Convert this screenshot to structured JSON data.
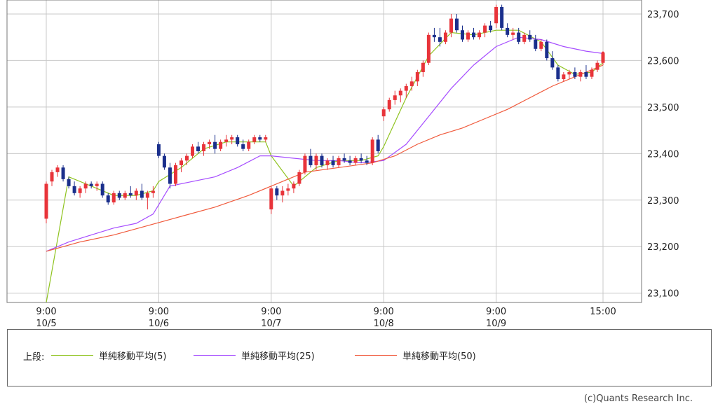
{
  "chart_data": {
    "type": "candlestick",
    "ylim": [
      23080,
      23730
    ],
    "y_ticks": [
      23100,
      23200,
      23300,
      23400,
      23500,
      23600,
      23700
    ],
    "y_tick_labels": [
      "23,100",
      "23,200",
      "23,300",
      "23,400",
      "23,500",
      "23,600",
      "23,700"
    ],
    "x_ticks": [
      {
        "i": 0,
        "line1": "9:00",
        "line2": "10/5"
      },
      {
        "i": 20,
        "line1": "9:00",
        "line2": "10/6"
      },
      {
        "i": 40,
        "line1": "9:00",
        "line2": "10/7"
      },
      {
        "i": 60,
        "line1": "9:00",
        "line2": "10/8"
      },
      {
        "i": 80,
        "line1": "9:00",
        "line2": "10/9"
      },
      {
        "i": 99,
        "line1": "15:00",
        "line2": ""
      }
    ],
    "n_bars": 100,
    "candles": [
      [
        0,
        23260,
        23340,
        23250,
        23335
      ],
      [
        1,
        23340,
        23365,
        23330,
        23360
      ],
      [
        2,
        23360,
        23375,
        23350,
        23370
      ],
      [
        3,
        23370,
        23375,
        23340,
        23345
      ],
      [
        4,
        23345,
        23350,
        23325,
        23330
      ],
      [
        5,
        23330,
        23340,
        23310,
        23315
      ],
      [
        6,
        23315,
        23330,
        23305,
        23325
      ],
      [
        7,
        23325,
        23340,
        23315,
        23335
      ],
      [
        8,
        23335,
        23340,
        23325,
        23330
      ],
      [
        9,
        23330,
        23340,
        23320,
        23335
      ],
      [
        10,
        23335,
        23340,
        23305,
        23310
      ],
      [
        11,
        23310,
        23315,
        23290,
        23295
      ],
      [
        12,
        23295,
        23320,
        23290,
        23315
      ],
      [
        13,
        23315,
        23320,
        23300,
        23305
      ],
      [
        14,
        23305,
        23320,
        23300,
        23315
      ],
      [
        15,
        23315,
        23330,
        23305,
        23310
      ],
      [
        16,
        23310,
        23325,
        23300,
        23320
      ],
      [
        17,
        23320,
        23335,
        23300,
        23305
      ],
      [
        18,
        23305,
        23320,
        23280,
        23315
      ],
      [
        19,
        23315,
        23330,
        23305,
        23320
      ],
      [
        20,
        23420,
        23425,
        23390,
        23395
      ],
      [
        21,
        23395,
        23400,
        23365,
        23370
      ],
      [
        22,
        23370,
        23380,
        23325,
        23335
      ],
      [
        23,
        23335,
        23380,
        23330,
        23375
      ],
      [
        24,
        23375,
        23390,
        23360,
        23385
      ],
      [
        25,
        23385,
        23400,
        23375,
        23395
      ],
      [
        26,
        23395,
        23420,
        23390,
        23415
      ],
      [
        27,
        23415,
        23425,
        23400,
        23405
      ],
      [
        28,
        23405,
        23425,
        23395,
        23420
      ],
      [
        29,
        23420,
        23430,
        23410,
        23425
      ],
      [
        30,
        23425,
        23440,
        23400,
        23410
      ],
      [
        31,
        23410,
        23430,
        23405,
        23425
      ],
      [
        32,
        23425,
        23440,
        23415,
        23430
      ],
      [
        33,
        23430,
        23440,
        23420,
        23435
      ],
      [
        34,
        23435,
        23440,
        23415,
        23420
      ],
      [
        35,
        23420,
        23430,
        23405,
        23410
      ],
      [
        36,
        23410,
        23430,
        23405,
        23425
      ],
      [
        37,
        23425,
        23440,
        23420,
        23435
      ],
      [
        38,
        23435,
        23440,
        23425,
        23430
      ],
      [
        39,
        23430,
        23440,
        23425,
        23435
      ],
      [
        40,
        23280,
        23330,
        23270,
        23325
      ],
      [
        41,
        23325,
        23330,
        23300,
        23310
      ],
      [
        42,
        23310,
        23330,
        23295,
        23320
      ],
      [
        43,
        23320,
        23335,
        23310,
        23325
      ],
      [
        44,
        23325,
        23340,
        23315,
        23335
      ],
      [
        45,
        23335,
        23365,
        23330,
        23360
      ],
      [
        46,
        23360,
        23400,
        23355,
        23395
      ],
      [
        47,
        23395,
        23410,
        23370,
        23375
      ],
      [
        48,
        23375,
        23400,
        23365,
        23395
      ],
      [
        49,
        23395,
        23400,
        23370,
        23375
      ],
      [
        50,
        23375,
        23390,
        23365,
        23385
      ],
      [
        51,
        23385,
        23395,
        23370,
        23375
      ],
      [
        52,
        23375,
        23395,
        23370,
        23390
      ],
      [
        53,
        23390,
        23400,
        23380,
        23385
      ],
      [
        54,
        23385,
        23395,
        23375,
        23380
      ],
      [
        55,
        23380,
        23395,
        23375,
        23390
      ],
      [
        56,
        23390,
        23400,
        23380,
        23385
      ],
      [
        57,
        23385,
        23395,
        23375,
        23380
      ],
      [
        58,
        23380,
        23435,
        23375,
        23430
      ],
      [
        59,
        23430,
        23440,
        23400,
        23405
      ],
      [
        60,
        23480,
        23500,
        23470,
        23495
      ],
      [
        61,
        23495,
        23520,
        23490,
        23515
      ],
      [
        62,
        23515,
        23535,
        23505,
        23525
      ],
      [
        63,
        23525,
        23540,
        23510,
        23535
      ],
      [
        64,
        23535,
        23550,
        23520,
        23545
      ],
      [
        65,
        23545,
        23565,
        23535,
        23555
      ],
      [
        66,
        23555,
        23580,
        23545,
        23575
      ],
      [
        67,
        23575,
        23600,
        23565,
        23595
      ],
      [
        68,
        23595,
        23660,
        23590,
        23655
      ],
      [
        69,
        23655,
        23670,
        23640,
        23650
      ],
      [
        70,
        23650,
        23670,
        23630,
        23640
      ],
      [
        71,
        23640,
        23665,
        23635,
        23660
      ],
      [
        72,
        23660,
        23700,
        23650,
        23690
      ],
      [
        73,
        23690,
        23700,
        23660,
        23665
      ],
      [
        74,
        23665,
        23675,
        23640,
        23645
      ],
      [
        75,
        23645,
        23665,
        23640,
        23660
      ],
      [
        76,
        23660,
        23670,
        23645,
        23650
      ],
      [
        77,
        23650,
        23665,
        23645,
        23660
      ],
      [
        78,
        23660,
        23680,
        23650,
        23675
      ],
      [
        79,
        23675,
        23685,
        23660,
        23665
      ],
      [
        80,
        23680,
        23720,
        23670,
        23715
      ],
      [
        81,
        23715,
        23720,
        23665,
        23670
      ],
      [
        82,
        23670,
        23680,
        23650,
        23655
      ],
      [
        83,
        23655,
        23670,
        23645,
        23660
      ],
      [
        84,
        23660,
        23670,
        23635,
        23640
      ],
      [
        85,
        23640,
        23660,
        23635,
        23655
      ],
      [
        86,
        23655,
        23665,
        23640,
        23645
      ],
      [
        87,
        23645,
        23655,
        23620,
        23625
      ],
      [
        88,
        23625,
        23645,
        23620,
        23640
      ],
      [
        89,
        23640,
        23645,
        23600,
        23605
      ],
      [
        90,
        23605,
        23620,
        23580,
        23585
      ],
      [
        91,
        23585,
        23590,
        23555,
        23560
      ],
      [
        92,
        23560,
        23575,
        23555,
        23570
      ],
      [
        93,
        23570,
        23580,
        23560,
        23575
      ],
      [
        94,
        23575,
        23585,
        23560,
        23565
      ],
      [
        95,
        23565,
        23580,
        23555,
        23575
      ],
      [
        96,
        23575,
        23590,
        23560,
        23565
      ],
      [
        97,
        23565,
        23585,
        23560,
        23580
      ],
      [
        98,
        23580,
        23600,
        23575,
        23595
      ],
      [
        99,
        23595,
        23620,
        23590,
        23615
      ]
    ],
    "series": [
      {
        "name": "単純移動平均(5)",
        "color": "#8fc31f",
        "points": [
          [
            0,
            23080
          ],
          [
            4,
            23350
          ],
          [
            8,
            23330
          ],
          [
            12,
            23310
          ],
          [
            16,
            23310
          ],
          [
            19,
            23320
          ],
          [
            20,
            23340
          ],
          [
            24,
            23370
          ],
          [
            28,
            23410
          ],
          [
            32,
            23425
          ],
          [
            36,
            23425
          ],
          [
            39,
            23425
          ],
          [
            40,
            23395
          ],
          [
            44,
            23330
          ],
          [
            48,
            23370
          ],
          [
            52,
            23385
          ],
          [
            56,
            23385
          ],
          [
            59,
            23395
          ],
          [
            60,
            23415
          ],
          [
            64,
            23520
          ],
          [
            68,
            23610
          ],
          [
            72,
            23660
          ],
          [
            76,
            23655
          ],
          [
            80,
            23665
          ],
          [
            84,
            23665
          ],
          [
            88,
            23640
          ],
          [
            91,
            23590
          ],
          [
            94,
            23570
          ],
          [
            97,
            23575
          ],
          [
            99,
            23595
          ]
        ]
      },
      {
        "name": "単純移動平均(25)",
        "color": "#a64dff",
        "points": [
          [
            0,
            23190
          ],
          [
            4,
            23210
          ],
          [
            8,
            23225
          ],
          [
            12,
            23240
          ],
          [
            16,
            23250
          ],
          [
            19,
            23270
          ],
          [
            22,
            23330
          ],
          [
            26,
            23340
          ],
          [
            30,
            23350
          ],
          [
            34,
            23370
          ],
          [
            38,
            23395
          ],
          [
            40,
            23395
          ],
          [
            44,
            23390
          ],
          [
            48,
            23385
          ],
          [
            52,
            23385
          ],
          [
            56,
            23380
          ],
          [
            60,
            23385
          ],
          [
            64,
            23420
          ],
          [
            68,
            23480
          ],
          [
            72,
            23540
          ],
          [
            76,
            23590
          ],
          [
            80,
            23630
          ],
          [
            84,
            23650
          ],
          [
            88,
            23645
          ],
          [
            92,
            23630
          ],
          [
            96,
            23620
          ],
          [
            99,
            23615
          ]
        ]
      },
      {
        "name": "単純移動平均(50)",
        "color": "#f05a3c",
        "points": [
          [
            0,
            23190
          ],
          [
            6,
            23210
          ],
          [
            12,
            23225
          ],
          [
            18,
            23245
          ],
          [
            24,
            23265
          ],
          [
            30,
            23285
          ],
          [
            36,
            23310
          ],
          [
            40,
            23330
          ],
          [
            46,
            23360
          ],
          [
            52,
            23370
          ],
          [
            58,
            23380
          ],
          [
            62,
            23395
          ],
          [
            66,
            23420
          ],
          [
            70,
            23440
          ],
          [
            74,
            23455
          ],
          [
            78,
            23475
          ],
          [
            82,
            23495
          ],
          [
            86,
            23520
          ],
          [
            90,
            23545
          ],
          [
            94,
            23565
          ],
          [
            99,
            23590
          ]
        ]
      }
    ]
  },
  "legend": {
    "prefix": "上段:",
    "items": [
      {
        "label": "単純移動平均(5)",
        "color": "#8fc31f"
      },
      {
        "label": "単純移動平均(25)",
        "color": "#a64dff"
      },
      {
        "label": "単純移動平均(50)",
        "color": "#f05a3c"
      }
    ]
  },
  "colors": {
    "up": "#e8343a",
    "down": "#1a2f8c",
    "grid": "#c8c8c8",
    "frame": "#777777"
  },
  "copyright": "(c)Quants Research Inc."
}
